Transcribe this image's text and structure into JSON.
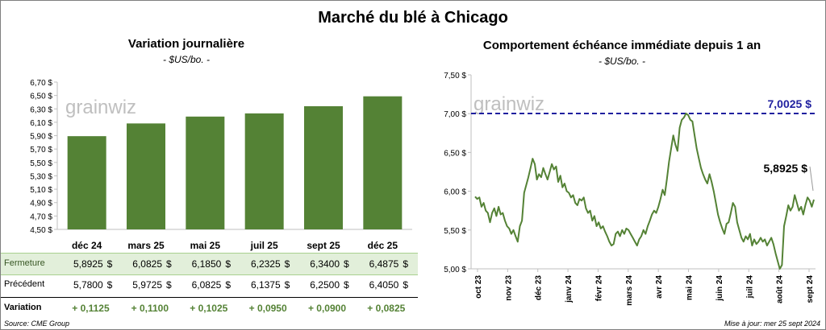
{
  "title": "Marché du blé à Chicago",
  "logo_text": "grainwiz",
  "left_chart": {
    "title": "Variation  journalière",
    "subtitle": "- $US/bo. -",
    "y_ticks": [
      "6,70 $",
      "6,50 $",
      "6,30 $",
      "6,10 $",
      "5,90 $",
      "5,70 $",
      "5,50 $",
      "5,30 $",
      "5,10 $",
      "4,90 $",
      "4,70 $",
      "4,50 $"
    ],
    "bar_color": "#548235"
  },
  "right_chart": {
    "title": "Comportement  échéance immédiate depuis 1 an",
    "subtitle": "- $US/bo. -",
    "y_ticks": [
      "7,50 $",
      "7,00 $",
      "6,50 $",
      "6,00 $",
      "5,50 $",
      "5,00 $"
    ],
    "x_ticks": [
      "oct 23",
      "nov 23",
      "déc 23",
      "janv 24",
      "févr 24",
      "mars 24",
      "avr 24",
      "mai 24",
      "juin 24",
      "juil 24",
      "août 24",
      "sept 24"
    ],
    "high_label": "7,0025 $",
    "last_label": "5,8925 $",
    "line_color": "#548235",
    "ref_color": "#1f1f9f"
  },
  "chart_data": [
    {
      "type": "bar",
      "title": "Variation  journalière",
      "categories": [
        "déc 24",
        "mars 25",
        "mai 25",
        "juil 25",
        "sept 25",
        "déc 25"
      ],
      "values": [
        5.8925,
        6.0825,
        6.185,
        6.2325,
        6.34,
        6.4875
      ],
      "ylim": [
        4.5,
        6.7
      ],
      "ylabel": "- $US/bo. -"
    },
    {
      "type": "line",
      "title": "Comportement  échéance immédiate depuis 1 an",
      "ylim": [
        5.0,
        7.5
      ],
      "ylabel": "- $US/bo. -",
      "x_ticks": [
        "oct 23",
        "nov 23",
        "déc 23",
        "janv 24",
        "févr 24",
        "mars 24",
        "avr 24",
        "mai 24",
        "juin 24",
        "juil 24",
        "août 24",
        "sept 24"
      ],
      "reference_line": 7.0025,
      "last_value": 5.8925,
      "series": [
        {
          "values": [
            5.93,
            5.9,
            5.92,
            5.8,
            5.85,
            5.75,
            5.72,
            5.6,
            5.72,
            5.78,
            5.68,
            5.8,
            5.7,
            5.72,
            5.62,
            5.55,
            5.52,
            5.45,
            5.5,
            5.42,
            5.35,
            5.55,
            5.62,
            5.98,
            6.08,
            6.18,
            6.3,
            6.42,
            6.35,
            6.15,
            6.22,
            6.18,
            6.3,
            6.22,
            6.15,
            6.25,
            6.35,
            6.28,
            6.32,
            6.12,
            6.2,
            6.05,
            6.1,
            6.0,
            5.98,
            5.92,
            5.95,
            5.85,
            5.82,
            5.9,
            5.88,
            5.92,
            5.78,
            5.72,
            5.75,
            5.62,
            5.68,
            5.55,
            5.6,
            5.52,
            5.55,
            5.48,
            5.42,
            5.35,
            5.3,
            5.32,
            5.45,
            5.48,
            5.42,
            5.5,
            5.45,
            5.52,
            5.5,
            5.45,
            5.4,
            5.35,
            5.3,
            5.38,
            5.42,
            5.5,
            5.45,
            5.55,
            5.62,
            5.7,
            5.75,
            5.72,
            5.8,
            5.9,
            6.02,
            5.95,
            6.15,
            6.38,
            6.55,
            6.72,
            6.6,
            6.52,
            6.82,
            6.92,
            6.95,
            7.0025,
            6.98,
            6.92,
            6.9,
            6.72,
            6.55,
            6.42,
            6.3,
            6.22,
            6.15,
            6.1,
            6.22,
            6.12,
            6.0,
            5.85,
            5.7,
            5.6,
            5.52,
            5.45,
            5.58,
            5.6,
            5.72,
            5.85,
            5.8,
            5.6,
            5.5,
            5.4,
            5.35,
            5.42,
            5.38,
            5.45,
            5.3,
            5.38,
            5.32,
            5.35,
            5.4,
            5.35,
            5.38,
            5.3,
            5.35,
            5.4,
            5.32,
            5.2,
            5.1,
            5.0,
            5.05,
            5.55,
            5.68,
            5.82,
            5.75,
            5.8,
            5.95,
            5.85,
            5.75,
            5.8,
            5.7,
            5.82,
            5.92,
            5.88,
            5.8,
            5.8925
          ]
        }
      ]
    }
  ],
  "table": {
    "rows": [
      {
        "label": "Fermeture",
        "values": [
          "5,8925",
          "6,0825",
          "6,1850",
          "6,2325",
          "6,3400",
          "6,4875"
        ],
        "unit": "$"
      },
      {
        "label": "Précédent",
        "values": [
          "5,7800",
          "5,9725",
          "6,0825",
          "6,1375",
          "6,2500",
          "6,4050"
        ],
        "unit": "$"
      },
      {
        "label": "Variation",
        "values": [
          "+ 0,1125",
          "+ 0,1100",
          "+ 0,1025",
          "+ 0,0950",
          "+ 0,0900",
          "+ 0,0825"
        ]
      }
    ]
  },
  "footer": {
    "source": "Source: CME Group",
    "updated": "Mise à jour: mer 25 sept 2024"
  }
}
